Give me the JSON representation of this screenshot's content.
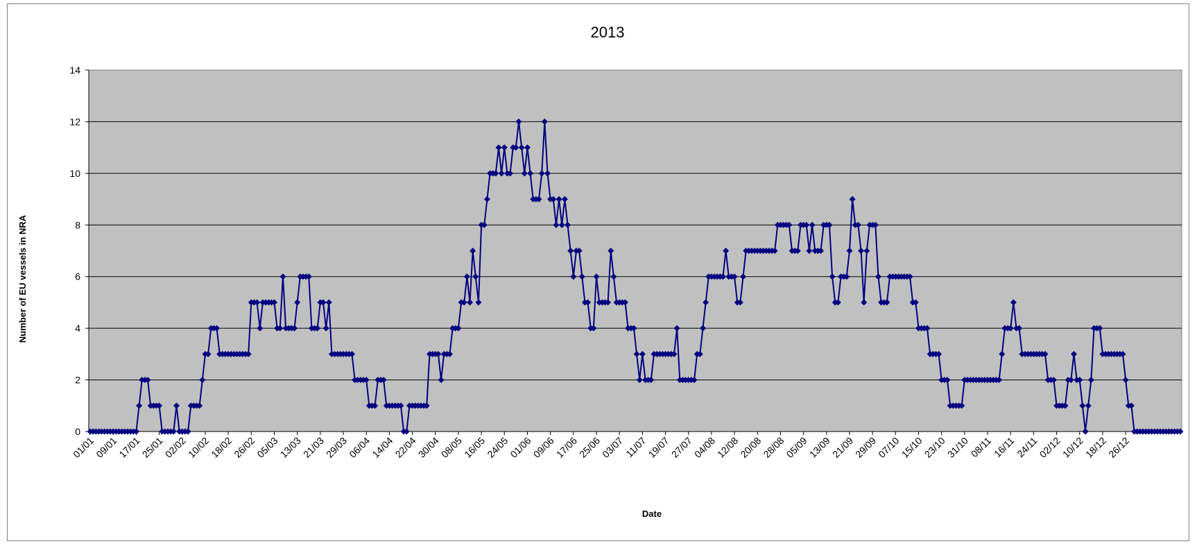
{
  "chart_data": {
    "type": "line",
    "title": "2013",
    "xlabel": "Date",
    "ylabel": "Number of EU vessels in NRA",
    "ylim": [
      0,
      14
    ],
    "yticks": [
      0,
      2,
      4,
      6,
      8,
      10,
      12,
      14
    ],
    "grid": true,
    "legend": "none",
    "plot_background": "#c0c0c0",
    "line_color": "#000080",
    "marker": "diamond",
    "x_tick_labels": [
      "01/01",
      "09/01",
      "17/01",
      "25/01",
      "02/02",
      "10/02",
      "18/02",
      "26/02",
      "05/03",
      "13/03",
      "21/03",
      "29/03",
      "06/04",
      "14/04",
      "22/04",
      "30/04",
      "08/05",
      "16/05",
      "24/05",
      "01/06",
      "09/06",
      "17/06",
      "25/06",
      "03/07",
      "11/07",
      "19/07",
      "27/07",
      "04/08",
      "12/08",
      "20/08",
      "28/08",
      "05/09",
      "13/09",
      "21/09",
      "29/09",
      "07/10",
      "15/10",
      "23/10",
      "31/10",
      "08/11",
      "16/11",
      "24/11",
      "02/12",
      "10/12",
      "18/12",
      "26/12"
    ],
    "x_start": "01/01",
    "x_step_days": 1,
    "series": [
      {
        "values": [
          0,
          0,
          0,
          0,
          0,
          0,
          0,
          0,
          0,
          0,
          0,
          0,
          0,
          0,
          0,
          0,
          0,
          1,
          2,
          2,
          2,
          1,
          1,
          1,
          1,
          0,
          0,
          0,
          0,
          0,
          1,
          0,
          0,
          0,
          0,
          1,
          1,
          1,
          1,
          2,
          3,
          3,
          4,
          4,
          4,
          3,
          3,
          3,
          3,
          3,
          3,
          3,
          3,
          3,
          3,
          3,
          5,
          5,
          5,
          4,
          5,
          5,
          5,
          5,
          5,
          4,
          4,
          6,
          4,
          4,
          4,
          4,
          5,
          6,
          6,
          6,
          6,
          4,
          4,
          4,
          5,
          5,
          4,
          5,
          3,
          3,
          3,
          3,
          3,
          3,
          3,
          3,
          2,
          2,
          2,
          2,
          2,
          1,
          1,
          1,
          2,
          2,
          2,
          1,
          1,
          1,
          1,
          1,
          1,
          0,
          0,
          1,
          1,
          1,
          1,
          1,
          1,
          1,
          3,
          3,
          3,
          3,
          2,
          3,
          3,
          3,
          4,
          4,
          4,
          5,
          5,
          6,
          5,
          7,
          6,
          5,
          8,
          8,
          9,
          10,
          10,
          10,
          11,
          10,
          11,
          10,
          10,
          11,
          11,
          12,
          11,
          10,
          11,
          10,
          9,
          9,
          9,
          10,
          12,
          10,
          9,
          9,
          8,
          9,
          8,
          9,
          8,
          7,
          6,
          7,
          7,
          6,
          5,
          5,
          4,
          4,
          6,
          5,
          5,
          5,
          5,
          7,
          6,
          5,
          5,
          5,
          5,
          4,
          4,
          4,
          3,
          2,
          3,
          2,
          2,
          2,
          3,
          3,
          3,
          3,
          3,
          3,
          3,
          3,
          4,
          2,
          2,
          2,
          2,
          2,
          2,
          3,
          3,
          4,
          5,
          6,
          6,
          6,
          6,
          6,
          6,
          7,
          6,
          6,
          6,
          5,
          5,
          6,
          7,
          7,
          7,
          7,
          7,
          7,
          7,
          7,
          7,
          7,
          7,
          8,
          8,
          8,
          8,
          8,
          7,
          7,
          7,
          8,
          8,
          8,
          7,
          8,
          7,
          7,
          7,
          8,
          8,
          8,
          6,
          5,
          5,
          6,
          6,
          6,
          7,
          9,
          8,
          8,
          7,
          5,
          7,
          8,
          8,
          8,
          6,
          5,
          5,
          5,
          6,
          6,
          6,
          6,
          6,
          6,
          6,
          6,
          5,
          5,
          4,
          4,
          4,
          4,
          3,
          3,
          3,
          3,
          2,
          2,
          2,
          1,
          1,
          1,
          1,
          1,
          2,
          2,
          2,
          2,
          2,
          2,
          2,
          2,
          2,
          2,
          2,
          2,
          2,
          3,
          4,
          4,
          4,
          5,
          4,
          4,
          3,
          3,
          3,
          3,
          3,
          3,
          3,
          3,
          3,
          2,
          2,
          2,
          1,
          1,
          1,
          1,
          2,
          2,
          3,
          2,
          2,
          1,
          0,
          1,
          2,
          4,
          4,
          4,
          3,
          3,
          3,
          3,
          3,
          3,
          3,
          3,
          2,
          1,
          1,
          0,
          0,
          0,
          0,
          0,
          0,
          0,
          0,
          0,
          0,
          0,
          0,
          0,
          0,
          0,
          0,
          0
        ]
      }
    ]
  }
}
